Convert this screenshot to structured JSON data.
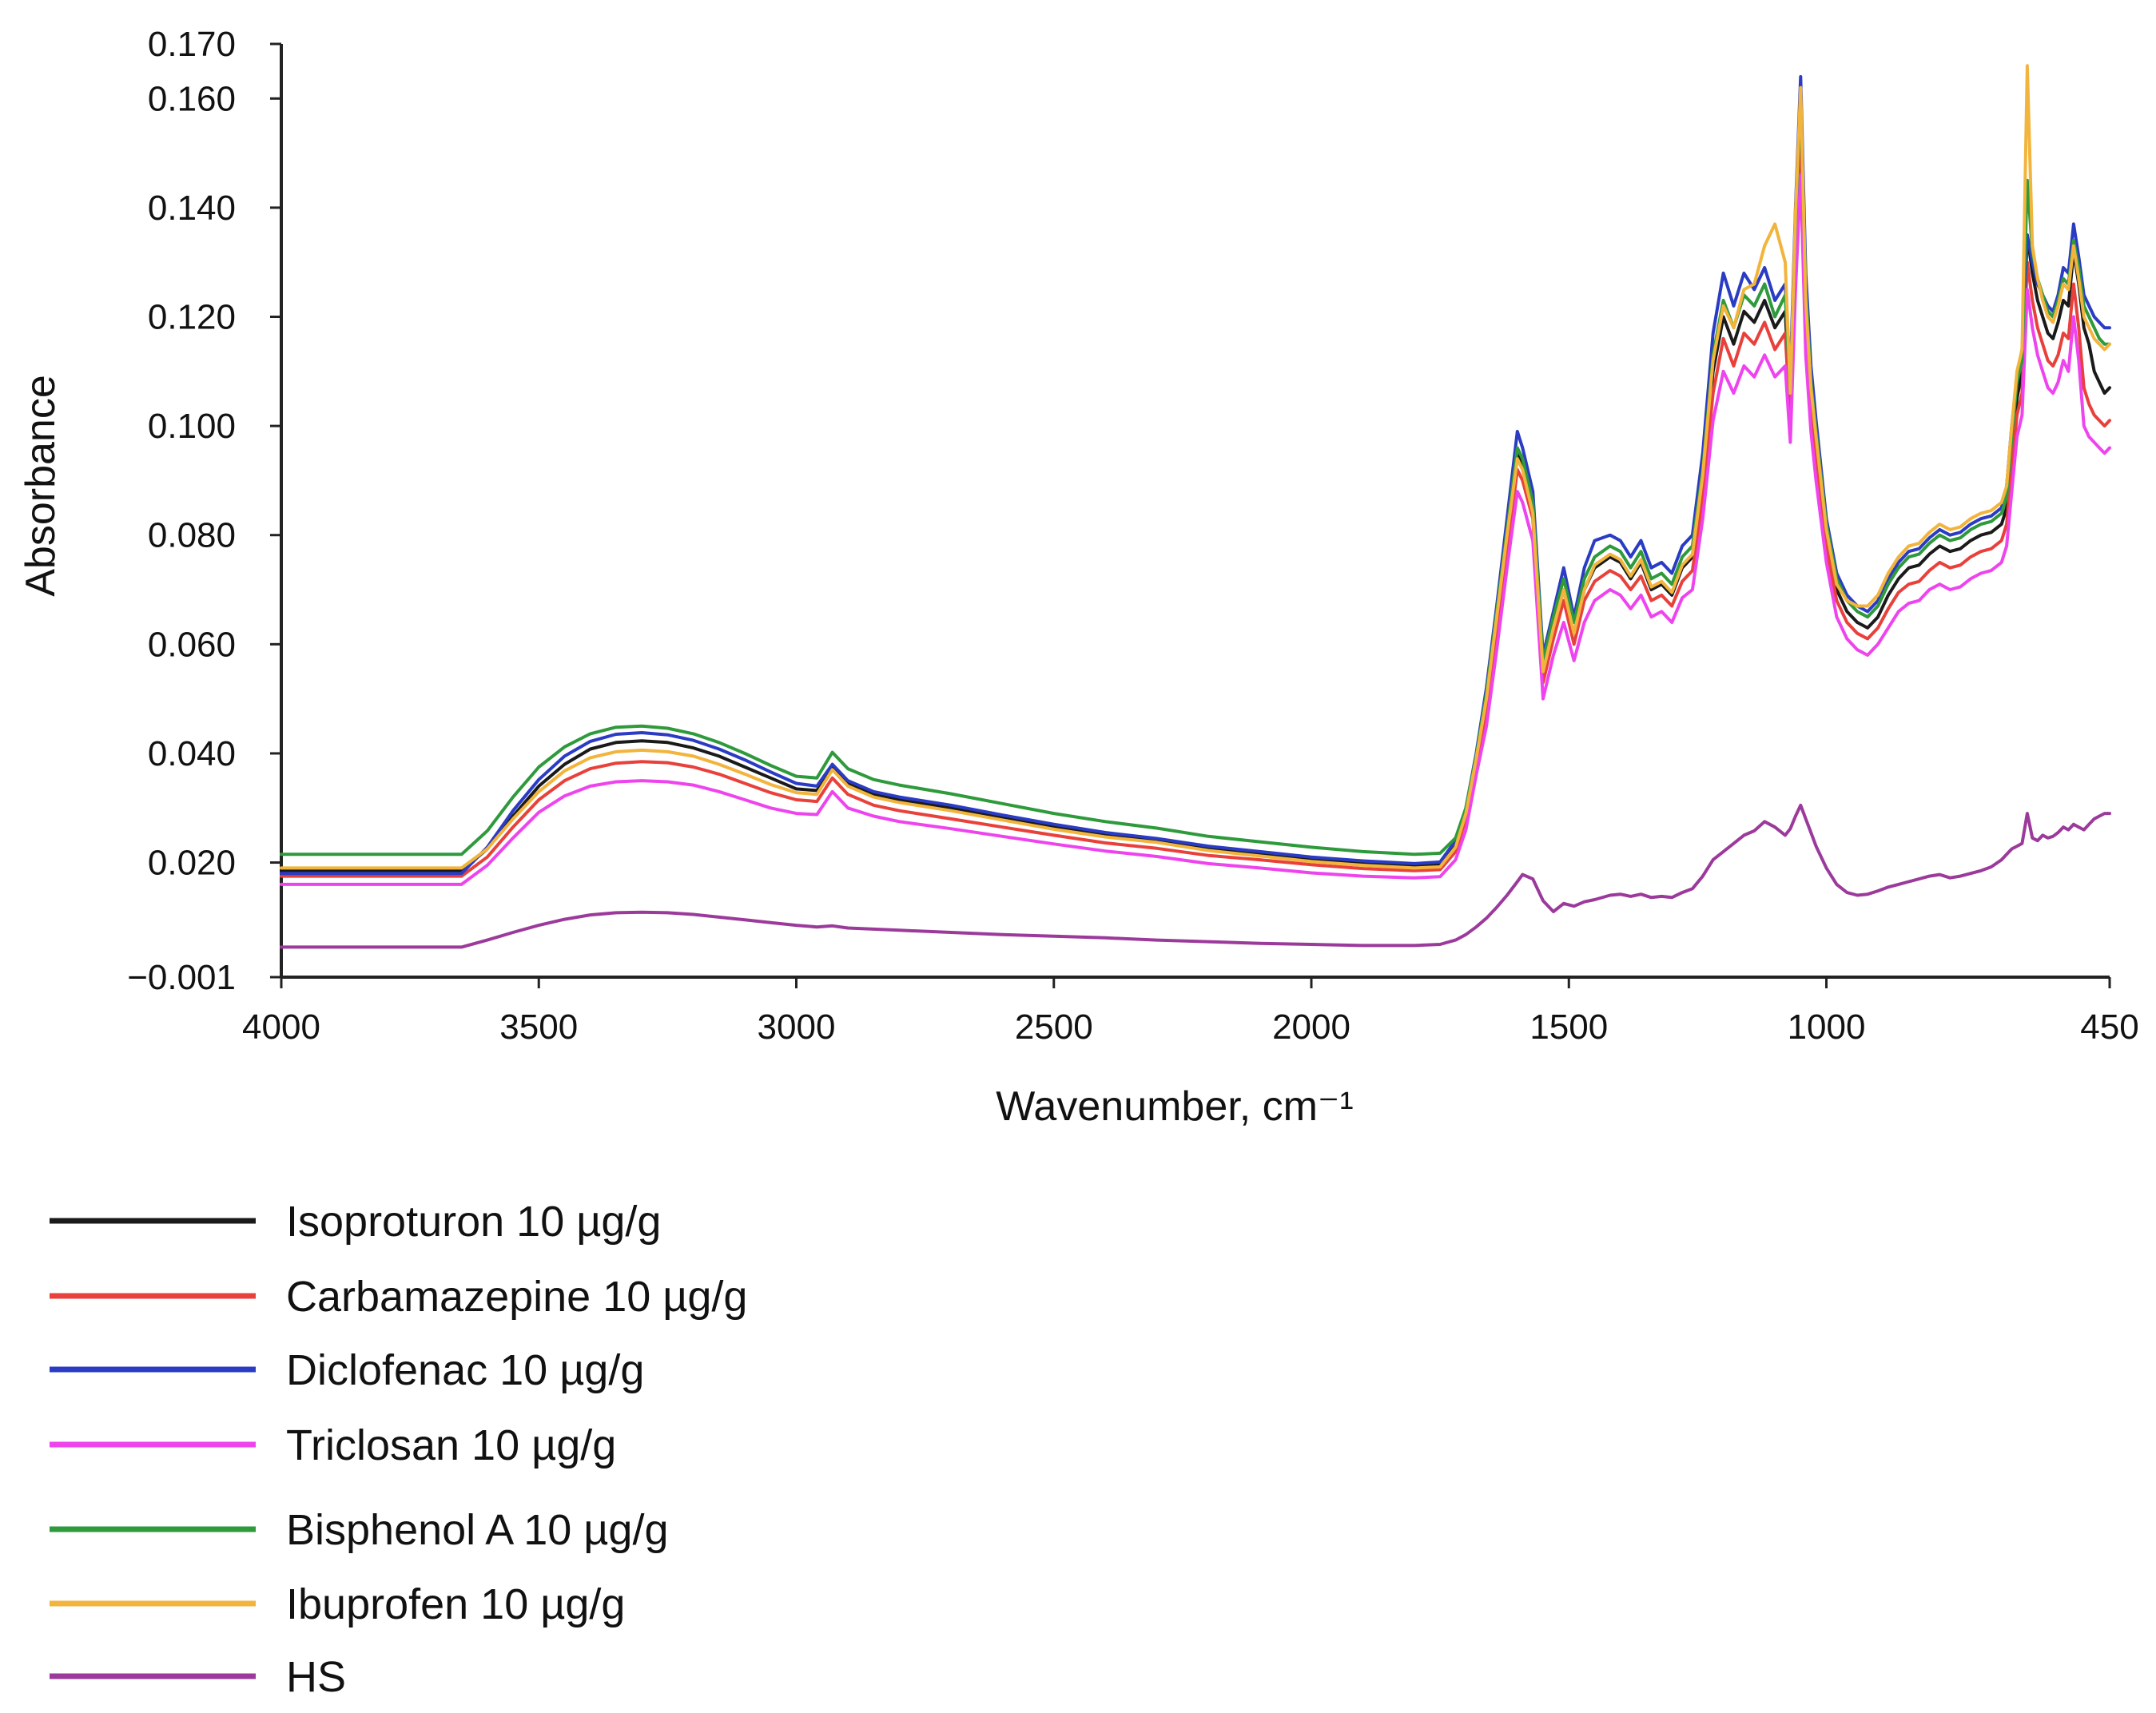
{
  "chart_data": {
    "type": "line",
    "title": "",
    "xlabel": "Wavenumber, cm⁻¹",
    "ylabel": "Absorbance",
    "xlim": [
      4000,
      450
    ],
    "ylim": [
      -0.001,
      0.17
    ],
    "x_reversed": true,
    "grid": false,
    "legend_position": "bottom-left",
    "x_ticks": [
      {
        "value": 4000,
        "label": "4000"
      },
      {
        "value": 3500,
        "label": "3500"
      },
      {
        "value": 3000,
        "label": "3000"
      },
      {
        "value": 2500,
        "label": "2500"
      },
      {
        "value": 2000,
        "label": "2000"
      },
      {
        "value": 1500,
        "label": "1500"
      },
      {
        "value": 1000,
        "label": "1000"
      },
      {
        "value": 450,
        "label": "450"
      }
    ],
    "y_ticks": [
      {
        "value": -0.001,
        "label": "−0.001"
      },
      {
        "value": 0.02,
        "label": "0.020"
      },
      {
        "value": 0.04,
        "label": "0.040"
      },
      {
        "value": 0.06,
        "label": "0.060"
      },
      {
        "value": 0.08,
        "label": "0.080"
      },
      {
        "value": 0.1,
        "label": "0.100"
      },
      {
        "value": 0.12,
        "label": "0.120"
      },
      {
        "value": 0.14,
        "label": "0.140"
      },
      {
        "value": 0.16,
        "label": "0.160"
      },
      {
        "value": 0.17,
        "label": "0.170"
      }
    ],
    "x": [
      4000,
      3900,
      3800,
      3700,
      3650,
      3600,
      3550,
      3500,
      3450,
      3400,
      3350,
      3300,
      3250,
      3200,
      3150,
      3100,
      3050,
      3000,
      2960,
      2930,
      2900,
      2850,
      2800,
      2700,
      2600,
      2500,
      2400,
      2300,
      2200,
      2100,
      2000,
      1900,
      1800,
      1750,
      1720,
      1700,
      1680,
      1660,
      1640,
      1620,
      1600,
      1590,
      1570,
      1550,
      1530,
      1510,
      1490,
      1470,
      1450,
      1420,
      1400,
      1380,
      1360,
      1340,
      1320,
      1300,
      1280,
      1260,
      1240,
      1220,
      1200,
      1180,
      1160,
      1140,
      1120,
      1100,
      1080,
      1070,
      1060,
      1050,
      1040,
      1030,
      1020,
      1000,
      980,
      960,
      940,
      920,
      900,
      880,
      860,
      840,
      820,
      800,
      780,
      760,
      740,
      720,
      700,
      680,
      660,
      650,
      640,
      630,
      620,
      610,
      600,
      590,
      580,
      570,
      560,
      550,
      540,
      530,
      520,
      510,
      500,
      490,
      480,
      470,
      460,
      450
    ],
    "series": [
      {
        "name": "Isoproturon 10 µg/g",
        "color": "#1a1a1a",
        "values": [
          0.0185,
          0.0185,
          0.0185,
          0.0185,
          0.0185,
          0.0225,
          0.0285,
          0.034,
          0.038,
          0.0408,
          0.042,
          0.0423,
          0.042,
          0.041,
          0.0395,
          0.0375,
          0.0355,
          0.0335,
          0.0332,
          0.0375,
          0.0345,
          0.0325,
          0.0315,
          0.03,
          0.0282,
          0.0265,
          0.025,
          0.024,
          0.0225,
          0.0215,
          0.0205,
          0.0198,
          0.0194,
          0.0196,
          0.023,
          0.029,
          0.039,
          0.05,
          0.065,
          0.08,
          0.095,
          0.093,
          0.085,
          0.056,
          0.063,
          0.07,
          0.062,
          0.07,
          0.074,
          0.076,
          0.075,
          0.072,
          0.075,
          0.07,
          0.071,
          0.069,
          0.074,
          0.076,
          0.09,
          0.11,
          0.12,
          0.115,
          0.121,
          0.119,
          0.123,
          0.118,
          0.121,
          0.104,
          0.134,
          0.158,
          0.122,
          0.106,
          0.097,
          0.08,
          0.07,
          0.066,
          0.064,
          0.063,
          0.065,
          0.069,
          0.072,
          0.074,
          0.0745,
          0.0765,
          0.078,
          0.077,
          0.0775,
          0.079,
          0.08,
          0.0805,
          0.082,
          0.085,
          0.095,
          0.105,
          0.11,
          0.135,
          0.128,
          0.123,
          0.12,
          0.117,
          0.116,
          0.119,
          0.123,
          0.122,
          0.132,
          0.126,
          0.118,
          0.115,
          0.11,
          0.108,
          0.106,
          0.107
        ]
      },
      {
        "name": "Carbamazepine 10 µg/g",
        "color": "#e8413c",
        "values": [
          0.0175,
          0.0175,
          0.0175,
          0.0175,
          0.0175,
          0.021,
          0.0265,
          0.0315,
          0.035,
          0.0372,
          0.0382,
          0.0385,
          0.0383,
          0.0375,
          0.0362,
          0.0345,
          0.0328,
          0.0315,
          0.0312,
          0.0355,
          0.0325,
          0.0305,
          0.0295,
          0.028,
          0.0265,
          0.025,
          0.0236,
          0.0226,
          0.0213,
          0.0205,
          0.0196,
          0.0189,
          0.0185,
          0.0187,
          0.022,
          0.028,
          0.038,
          0.048,
          0.062,
          0.077,
          0.092,
          0.09,
          0.083,
          0.053,
          0.061,
          0.068,
          0.06,
          0.068,
          0.0715,
          0.0735,
          0.0725,
          0.07,
          0.0725,
          0.068,
          0.069,
          0.067,
          0.0715,
          0.0735,
          0.087,
          0.106,
          0.116,
          0.111,
          0.117,
          0.115,
          0.119,
          0.114,
          0.117,
          0.101,
          0.13,
          0.152,
          0.118,
          0.103,
          0.094,
          0.078,
          0.068,
          0.064,
          0.062,
          0.061,
          0.063,
          0.0665,
          0.0695,
          0.071,
          0.0715,
          0.0735,
          0.075,
          0.074,
          0.0745,
          0.076,
          0.077,
          0.0775,
          0.079,
          0.082,
          0.092,
          0.102,
          0.106,
          0.13,
          0.123,
          0.118,
          0.115,
          0.112,
          0.111,
          0.113,
          0.117,
          0.116,
          0.126,
          0.118,
          0.107,
          0.104,
          0.102,
          0.101,
          0.1,
          0.101
        ]
      },
      {
        "name": "Diclofenac 10 µg/g",
        "color": "#2b3cc4",
        "values": [
          0.018,
          0.018,
          0.018,
          0.018,
          0.018,
          0.0228,
          0.0295,
          0.0352,
          0.0395,
          0.0422,
          0.0435,
          0.0438,
          0.0434,
          0.0424,
          0.0408,
          0.0388,
          0.0366,
          0.0345,
          0.034,
          0.038,
          0.035,
          0.033,
          0.032,
          0.0305,
          0.0287,
          0.027,
          0.0255,
          0.0244,
          0.023,
          0.022,
          0.021,
          0.0203,
          0.0198,
          0.0201,
          0.024,
          0.03,
          0.04,
          0.052,
          0.067,
          0.083,
          0.099,
          0.096,
          0.088,
          0.058,
          0.066,
          0.074,
          0.065,
          0.074,
          0.079,
          0.08,
          0.079,
          0.076,
          0.079,
          0.074,
          0.075,
          0.073,
          0.078,
          0.08,
          0.095,
          0.117,
          0.128,
          0.122,
          0.128,
          0.125,
          0.129,
          0.123,
          0.126,
          0.109,
          0.14,
          0.164,
          0.128,
          0.111,
          0.101,
          0.083,
          0.073,
          0.069,
          0.067,
          0.066,
          0.068,
          0.072,
          0.075,
          0.077,
          0.0775,
          0.0795,
          0.081,
          0.08,
          0.0805,
          0.082,
          0.083,
          0.0835,
          0.085,
          0.089,
          0.1,
          0.109,
          0.114,
          0.135,
          0.13,
          0.126,
          0.124,
          0.122,
          0.121,
          0.124,
          0.129,
          0.128,
          0.137,
          0.131,
          0.124,
          0.122,
          0.12,
          0.119,
          0.118,
          0.118
        ]
      },
      {
        "name": "Triclosan 10 µg/g",
        "color": "#ee44ee",
        "values": [
          0.016,
          0.016,
          0.016,
          0.016,
          0.016,
          0.0195,
          0.0245,
          0.0292,
          0.0322,
          0.034,
          0.0348,
          0.035,
          0.0348,
          0.0342,
          0.033,
          0.0315,
          0.03,
          0.029,
          0.0288,
          0.033,
          0.03,
          0.0285,
          0.0275,
          0.0262,
          0.0248,
          0.0234,
          0.0221,
          0.0211,
          0.0198,
          0.019,
          0.0181,
          0.0175,
          0.0172,
          0.0174,
          0.0205,
          0.026,
          0.036,
          0.045,
          0.059,
          0.074,
          0.088,
          0.086,
          0.079,
          0.05,
          0.058,
          0.064,
          0.057,
          0.064,
          0.068,
          0.07,
          0.069,
          0.0665,
          0.069,
          0.065,
          0.066,
          0.064,
          0.0685,
          0.07,
          0.083,
          0.101,
          0.11,
          0.106,
          0.111,
          0.109,
          0.113,
          0.109,
          0.111,
          0.097,
          0.125,
          0.146,
          0.113,
          0.099,
          0.09,
          0.075,
          0.065,
          0.061,
          0.059,
          0.058,
          0.06,
          0.063,
          0.066,
          0.0675,
          0.068,
          0.07,
          0.071,
          0.07,
          0.0705,
          0.072,
          0.073,
          0.0735,
          0.075,
          0.078,
          0.088,
          0.098,
          0.102,
          0.125,
          0.118,
          0.113,
          0.11,
          0.107,
          0.106,
          0.108,
          0.112,
          0.11,
          0.12,
          0.112,
          0.1,
          0.098,
          0.097,
          0.096,
          0.095,
          0.096
        ]
      },
      {
        "name": "Bisphenol A 10 µg/g",
        "color": "#2e9a3c",
        "values": [
          0.0215,
          0.0215,
          0.0215,
          0.0215,
          0.0215,
          0.0258,
          0.032,
          0.0375,
          0.0412,
          0.0436,
          0.0448,
          0.045,
          0.0446,
          0.0436,
          0.042,
          0.04,
          0.0378,
          0.0358,
          0.0355,
          0.0402,
          0.0372,
          0.0352,
          0.0342,
          0.0326,
          0.0308,
          0.029,
          0.0275,
          0.0263,
          0.0248,
          0.0238,
          0.0228,
          0.022,
          0.0215,
          0.0217,
          0.0245,
          0.03,
          0.0395,
          0.051,
          0.066,
          0.081,
          0.096,
          0.094,
          0.086,
          0.057,
          0.065,
          0.072,
          0.064,
          0.072,
          0.076,
          0.078,
          0.077,
          0.074,
          0.077,
          0.072,
          0.073,
          0.071,
          0.076,
          0.078,
          0.092,
          0.113,
          0.123,
          0.118,
          0.124,
          0.122,
          0.126,
          0.12,
          0.124,
          0.106,
          0.138,
          0.16,
          0.125,
          0.108,
          0.099,
          0.082,
          0.072,
          0.068,
          0.066,
          0.065,
          0.067,
          0.071,
          0.074,
          0.076,
          0.0765,
          0.0785,
          0.08,
          0.079,
          0.0795,
          0.081,
          0.082,
          0.0825,
          0.084,
          0.087,
          0.098,
          0.108,
          0.112,
          0.145,
          0.132,
          0.127,
          0.124,
          0.121,
          0.12,
          0.123,
          0.127,
          0.126,
          0.134,
          0.129,
          0.122,
          0.12,
          0.118,
          0.116,
          0.115,
          0.115
        ]
      },
      {
        "name": "Ibuprofen 10 µg/g",
        "color": "#f2b43c",
        "values": [
          0.019,
          0.019,
          0.019,
          0.019,
          0.019,
          0.0225,
          0.028,
          0.033,
          0.0368,
          0.0392,
          0.0403,
          0.0406,
          0.0403,
          0.0395,
          0.038,
          0.0362,
          0.0343,
          0.0328,
          0.0325,
          0.037,
          0.034,
          0.032,
          0.031,
          0.0295,
          0.0278,
          0.0261,
          0.0247,
          0.0237,
          0.0222,
          0.0212,
          0.0202,
          0.0195,
          0.019,
          0.0192,
          0.0228,
          0.029,
          0.039,
          0.05,
          0.065,
          0.08,
          0.094,
          0.092,
          0.084,
          0.055,
          0.063,
          0.07,
          0.062,
          0.07,
          0.0745,
          0.0765,
          0.0755,
          0.0725,
          0.0755,
          0.0705,
          0.0715,
          0.0695,
          0.0745,
          0.0765,
          0.091,
          0.112,
          0.122,
          0.118,
          0.125,
          0.126,
          0.133,
          0.137,
          0.13,
          0.106,
          0.139,
          0.162,
          0.123,
          0.107,
          0.098,
          0.081,
          0.071,
          0.068,
          0.067,
          0.067,
          0.069,
          0.073,
          0.076,
          0.078,
          0.0785,
          0.0805,
          0.082,
          0.081,
          0.0815,
          0.083,
          0.084,
          0.0845,
          0.086,
          0.089,
          0.1,
          0.11,
          0.114,
          0.166,
          0.133,
          0.127,
          0.123,
          0.12,
          0.119,
          0.122,
          0.126,
          0.125,
          0.133,
          0.127,
          0.12,
          0.118,
          0.116,
          0.115,
          0.114,
          0.115
        ]
      },
      {
        "name": "HS",
        "color": "#9b3a9b",
        "values": [
          0.0045,
          0.0045,
          0.0045,
          0.0045,
          0.0045,
          0.0058,
          0.0072,
          0.0085,
          0.0096,
          0.0104,
          0.0108,
          0.0109,
          0.0108,
          0.0105,
          0.01,
          0.0095,
          0.009,
          0.0085,
          0.0082,
          0.0084,
          0.008,
          0.0078,
          0.0076,
          0.0072,
          0.0068,
          0.0065,
          0.0062,
          0.0058,
          0.0055,
          0.0052,
          0.005,
          0.0048,
          0.0048,
          0.005,
          0.0058,
          0.0068,
          0.0082,
          0.0098,
          0.0118,
          0.014,
          0.0165,
          0.0178,
          0.017,
          0.013,
          0.011,
          0.0125,
          0.012,
          0.0128,
          0.0132,
          0.014,
          0.0142,
          0.0138,
          0.0142,
          0.0136,
          0.0138,
          0.0136,
          0.0145,
          0.0152,
          0.0175,
          0.0205,
          0.022,
          0.0235,
          0.025,
          0.0258,
          0.0275,
          0.0265,
          0.025,
          0.0262,
          0.0285,
          0.0305,
          0.028,
          0.0255,
          0.023,
          0.019,
          0.016,
          0.0145,
          0.014,
          0.0142,
          0.0148,
          0.0155,
          0.016,
          0.0165,
          0.017,
          0.0175,
          0.0178,
          0.0172,
          0.0175,
          0.018,
          0.0185,
          0.0192,
          0.0205,
          0.0215,
          0.0225,
          0.023,
          0.0235,
          0.029,
          0.0245,
          0.024,
          0.025,
          0.0245,
          0.0248,
          0.0255,
          0.0265,
          0.026,
          0.027,
          0.0265,
          0.026,
          0.027,
          0.028,
          0.0285,
          0.029,
          0.029
        ]
      }
    ]
  }
}
